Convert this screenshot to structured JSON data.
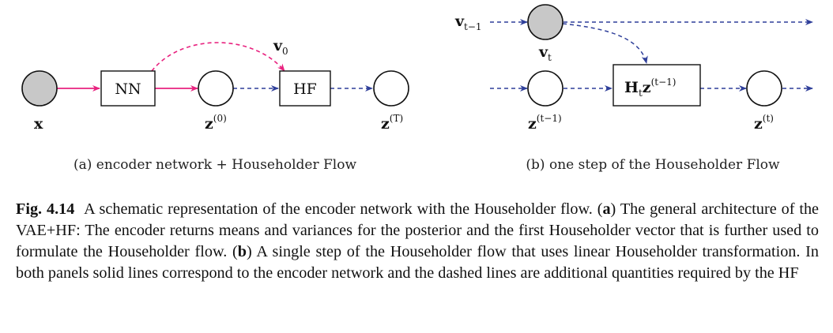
{
  "panel_a": {
    "nodes": {
      "x": "x",
      "z0_base": "z",
      "z0_sup": "(0)",
      "zT_base": "z",
      "zT_sup": "(T)",
      "v0_base": "v",
      "v0_sub": "0"
    },
    "boxes": {
      "nn": "NN",
      "hf": "HF"
    },
    "caption": "(a) encoder network + Householder Flow"
  },
  "panel_b": {
    "nodes": {
      "vprev_base": "v",
      "vprev_sub": "t−1",
      "vt_base": "v",
      "vt_sub": "t",
      "zprev_base": "z",
      "zprev_sup": "(t−1)",
      "zt_base": "z",
      "zt_sup": "(t)"
    },
    "box": {
      "h_base": "H",
      "h_sub": "t",
      "z_base": "z",
      "z_sup": "(t−1)"
    },
    "caption": "(b) one step of the Householder Flow"
  },
  "caption": {
    "label": "Fig. 4.14",
    "t1": "A schematic representation of the encoder network with the Householder flow. (",
    "a": "a",
    "t2": ") The general architecture of the VAE+HF: The encoder returns means and variances for the posterior and the first Householder vector that is further used to formulate the Householder flow. (",
    "b": "b",
    "t3": ") A single step of the Householder flow that uses linear Householder transformation. In both panels solid lines correspond to the encoder network and the dashed lines are additional quantities required by the HF"
  },
  "colors": {
    "solid_edge": "#e8227f",
    "dashed_edge_a": "#e8227f",
    "dashed_edge_b": "#2f3f9a",
    "filled_node": "#c8c8c8"
  }
}
